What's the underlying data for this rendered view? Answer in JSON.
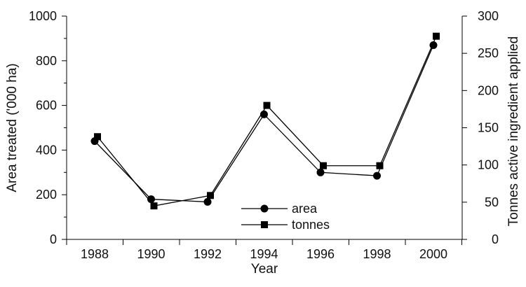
{
  "chart_data": {
    "type": "line",
    "x": [
      1988,
      1990,
      1992,
      1994,
      1996,
      1998,
      2000
    ],
    "x_tick_labels": [
      "1988",
      "1990",
      "1992",
      "1994",
      "1996",
      "1998",
      "2000"
    ],
    "xlabel": "Year",
    "ylabel_left": "Area treated ('000 ha)",
    "ylabel_right": "Tonnes active ingredient applied",
    "ylim_left": [
      0,
      1000
    ],
    "ylim_right": [
      0,
      300
    ],
    "y_ticks_left": [
      "0",
      "200",
      "400",
      "600",
      "800",
      "1000"
    ],
    "y_ticks_right": [
      "0",
      "50",
      "100",
      "150",
      "200",
      "250",
      "300"
    ],
    "series": [
      {
        "name": "area",
        "axis": "left",
        "marker": "circle",
        "values": [
          440,
          180,
          168,
          560,
          300,
          285,
          870
        ]
      },
      {
        "name": "tonnes",
        "axis": "right",
        "marker": "square",
        "values": [
          138,
          45,
          59,
          180,
          99,
          99,
          273
        ]
      }
    ],
    "legend_position": "bottom-center",
    "grid": false
  }
}
